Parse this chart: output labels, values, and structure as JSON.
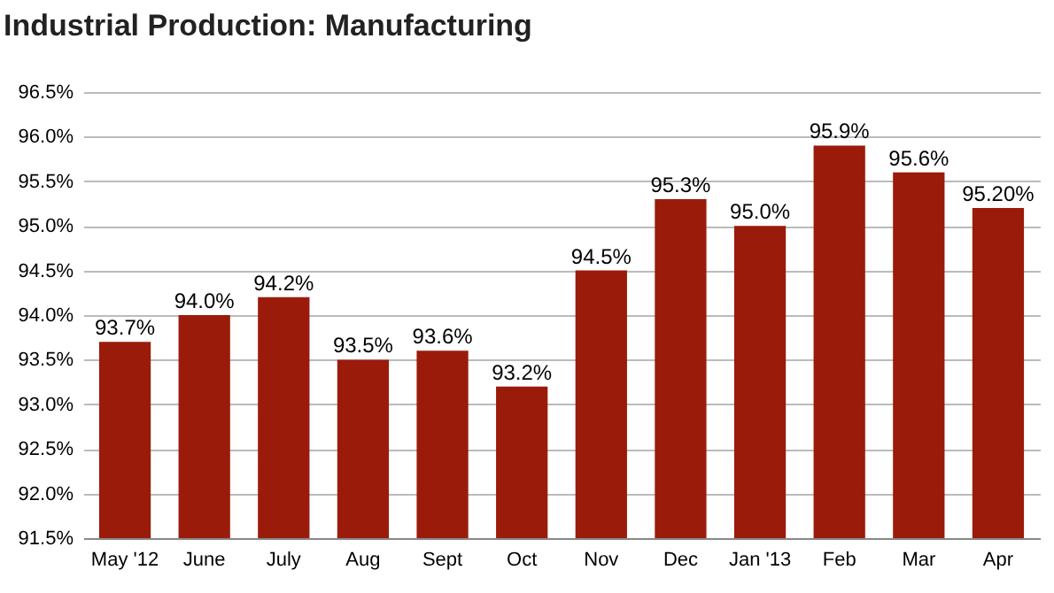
{
  "chart_data": {
    "type": "bar",
    "title": "Industrial Production: Manufacturing",
    "categories": [
      "May '12",
      "June",
      "July",
      "Aug",
      "Sept",
      "Oct",
      "Nov",
      "Dec",
      "Jan '13",
      "Feb",
      "Mar",
      "Apr"
    ],
    "values": [
      93.7,
      94.0,
      94.2,
      93.5,
      93.6,
      93.2,
      94.5,
      95.3,
      95.0,
      95.9,
      95.6,
      95.2
    ],
    "value_labels": [
      "93.7%",
      "94.0%",
      "94.2%",
      "93.5%",
      "93.6%",
      "93.2%",
      "94.5%",
      "95.3%",
      "95.0%",
      "95.9%",
      "95.6%",
      "95.20%"
    ],
    "color": "#9b1b0b",
    "ylim": [
      91.5,
      96.5
    ],
    "yticks": [
      {
        "value": 91.5,
        "label": "91.5%"
      },
      {
        "value": 92.0,
        "label": "92.0%"
      },
      {
        "value": 92.5,
        "label": "92.5%"
      },
      {
        "value": 93.0,
        "label": "93.0%"
      },
      {
        "value": 93.5,
        "label": "93.5%"
      },
      {
        "value": 94.0,
        "label": "94.0%"
      },
      {
        "value": 94.5,
        "label": "94.5%"
      },
      {
        "value": 95.0,
        "label": "95.0%"
      },
      {
        "value": 95.5,
        "label": "95.5%"
      },
      {
        "value": 96.0,
        "label": "96.0%"
      },
      {
        "value": 96.5,
        "label": "96.5%"
      }
    ],
    "grid": "y"
  }
}
